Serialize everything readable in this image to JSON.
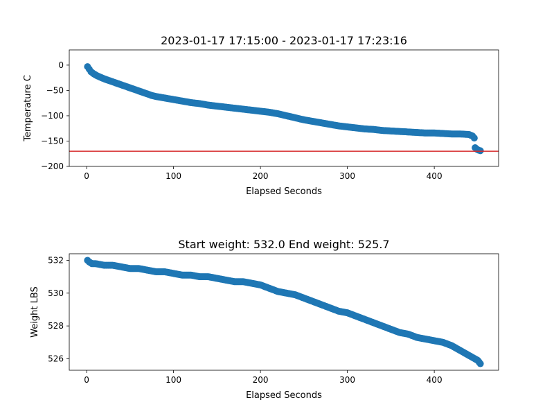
{
  "chart_data": [
    {
      "type": "scatter",
      "title": "2023-01-17 17:15:00 - 2023-01-17 17:23:16",
      "xlabel": "Elapsed Seconds",
      "ylabel": "Temperature C",
      "xlim": [
        -20,
        474
      ],
      "ylim": [
        -200,
        30
      ],
      "xticks": [
        0,
        100,
        200,
        300,
        400
      ],
      "yticks": [
        0,
        -50,
        -100,
        -150,
        -200
      ],
      "grid": false,
      "marker_color": "#1f77b4",
      "reference_line": {
        "y": -170,
        "color": "#d62728"
      },
      "points": [
        [
          1,
          -3
        ],
        [
          3,
          -8
        ],
        [
          5,
          -13
        ],
        [
          8,
          -17
        ],
        [
          12,
          -21
        ],
        [
          16,
          -24
        ],
        [
          20,
          -27
        ],
        [
          25,
          -30
        ],
        [
          30,
          -33
        ],
        [
          35,
          -36
        ],
        [
          40,
          -39
        ],
        [
          45,
          -42
        ],
        [
          50,
          -45
        ],
        [
          55,
          -48
        ],
        [
          60,
          -51
        ],
        [
          65,
          -54
        ],
        [
          70,
          -57
        ],
        [
          75,
          -60
        ],
        [
          80,
          -62
        ],
        [
          90,
          -65
        ],
        [
          100,
          -68
        ],
        [
          110,
          -71
        ],
        [
          120,
          -74
        ],
        [
          130,
          -76
        ],
        [
          140,
          -79
        ],
        [
          150,
          -81
        ],
        [
          160,
          -83
        ],
        [
          170,
          -85
        ],
        [
          180,
          -87
        ],
        [
          190,
          -89
        ],
        [
          200,
          -91
        ],
        [
          210,
          -93
        ],
        [
          220,
          -96
        ],
        [
          230,
          -100
        ],
        [
          240,
          -104
        ],
        [
          250,
          -108
        ],
        [
          260,
          -111
        ],
        [
          270,
          -114
        ],
        [
          280,
          -117
        ],
        [
          290,
          -120
        ],
        [
          300,
          -122
        ],
        [
          310,
          -124
        ],
        [
          320,
          -126
        ],
        [
          330,
          -127
        ],
        [
          340,
          -129
        ],
        [
          350,
          -130
        ],
        [
          360,
          -131
        ],
        [
          370,
          -132
        ],
        [
          380,
          -133
        ],
        [
          390,
          -134
        ],
        [
          400,
          -134
        ],
        [
          410,
          -135
        ],
        [
          420,
          -136
        ],
        [
          430,
          -136
        ],
        [
          440,
          -137
        ],
        [
          444,
          -140
        ],
        [
          446,
          -144
        ],
        [
          447,
          -163
        ],
        [
          449,
          -166
        ],
        [
          451,
          -168
        ],
        [
          453,
          -169
        ]
      ]
    },
    {
      "type": "scatter",
      "title": "Start weight: 532.0 End weight: 525.7",
      "xlabel": "Elapsed Seconds",
      "ylabel": "Weight LBS",
      "xlim": [
        -20,
        474
      ],
      "ylim": [
        525.3,
        532.4
      ],
      "xticks": [
        0,
        100,
        200,
        300,
        400
      ],
      "yticks": [
        526,
        528,
        530,
        532
      ],
      "grid": false,
      "marker_color": "#1f77b4",
      "points": [
        [
          1,
          532.0
        ],
        [
          3,
          531.9
        ],
        [
          6,
          531.8
        ],
        [
          10,
          531.8
        ],
        [
          20,
          531.7
        ],
        [
          30,
          531.7
        ],
        [
          40,
          531.6
        ],
        [
          50,
          531.5
        ],
        [
          60,
          531.5
        ],
        [
          70,
          531.4
        ],
        [
          80,
          531.3
        ],
        [
          90,
          531.3
        ],
        [
          100,
          531.2
        ],
        [
          110,
          531.1
        ],
        [
          120,
          531.1
        ],
        [
          130,
          531.0
        ],
        [
          140,
          531.0
        ],
        [
          150,
          530.9
        ],
        [
          160,
          530.8
        ],
        [
          170,
          530.7
        ],
        [
          180,
          530.7
        ],
        [
          190,
          530.6
        ],
        [
          200,
          530.5
        ],
        [
          210,
          530.3
        ],
        [
          220,
          530.1
        ],
        [
          230,
          530.0
        ],
        [
          240,
          529.9
        ],
        [
          250,
          529.7
        ],
        [
          260,
          529.5
        ],
        [
          270,
          529.3
        ],
        [
          280,
          529.1
        ],
        [
          290,
          528.9
        ],
        [
          300,
          528.8
        ],
        [
          310,
          528.6
        ],
        [
          320,
          528.4
        ],
        [
          330,
          528.2
        ],
        [
          340,
          528.0
        ],
        [
          350,
          527.8
        ],
        [
          360,
          527.6
        ],
        [
          370,
          527.5
        ],
        [
          380,
          527.3
        ],
        [
          390,
          527.2
        ],
        [
          400,
          527.1
        ],
        [
          410,
          527.0
        ],
        [
          420,
          526.8
        ],
        [
          430,
          526.5
        ],
        [
          440,
          526.2
        ],
        [
          450,
          525.9
        ],
        [
          453,
          525.7
        ]
      ]
    }
  ]
}
